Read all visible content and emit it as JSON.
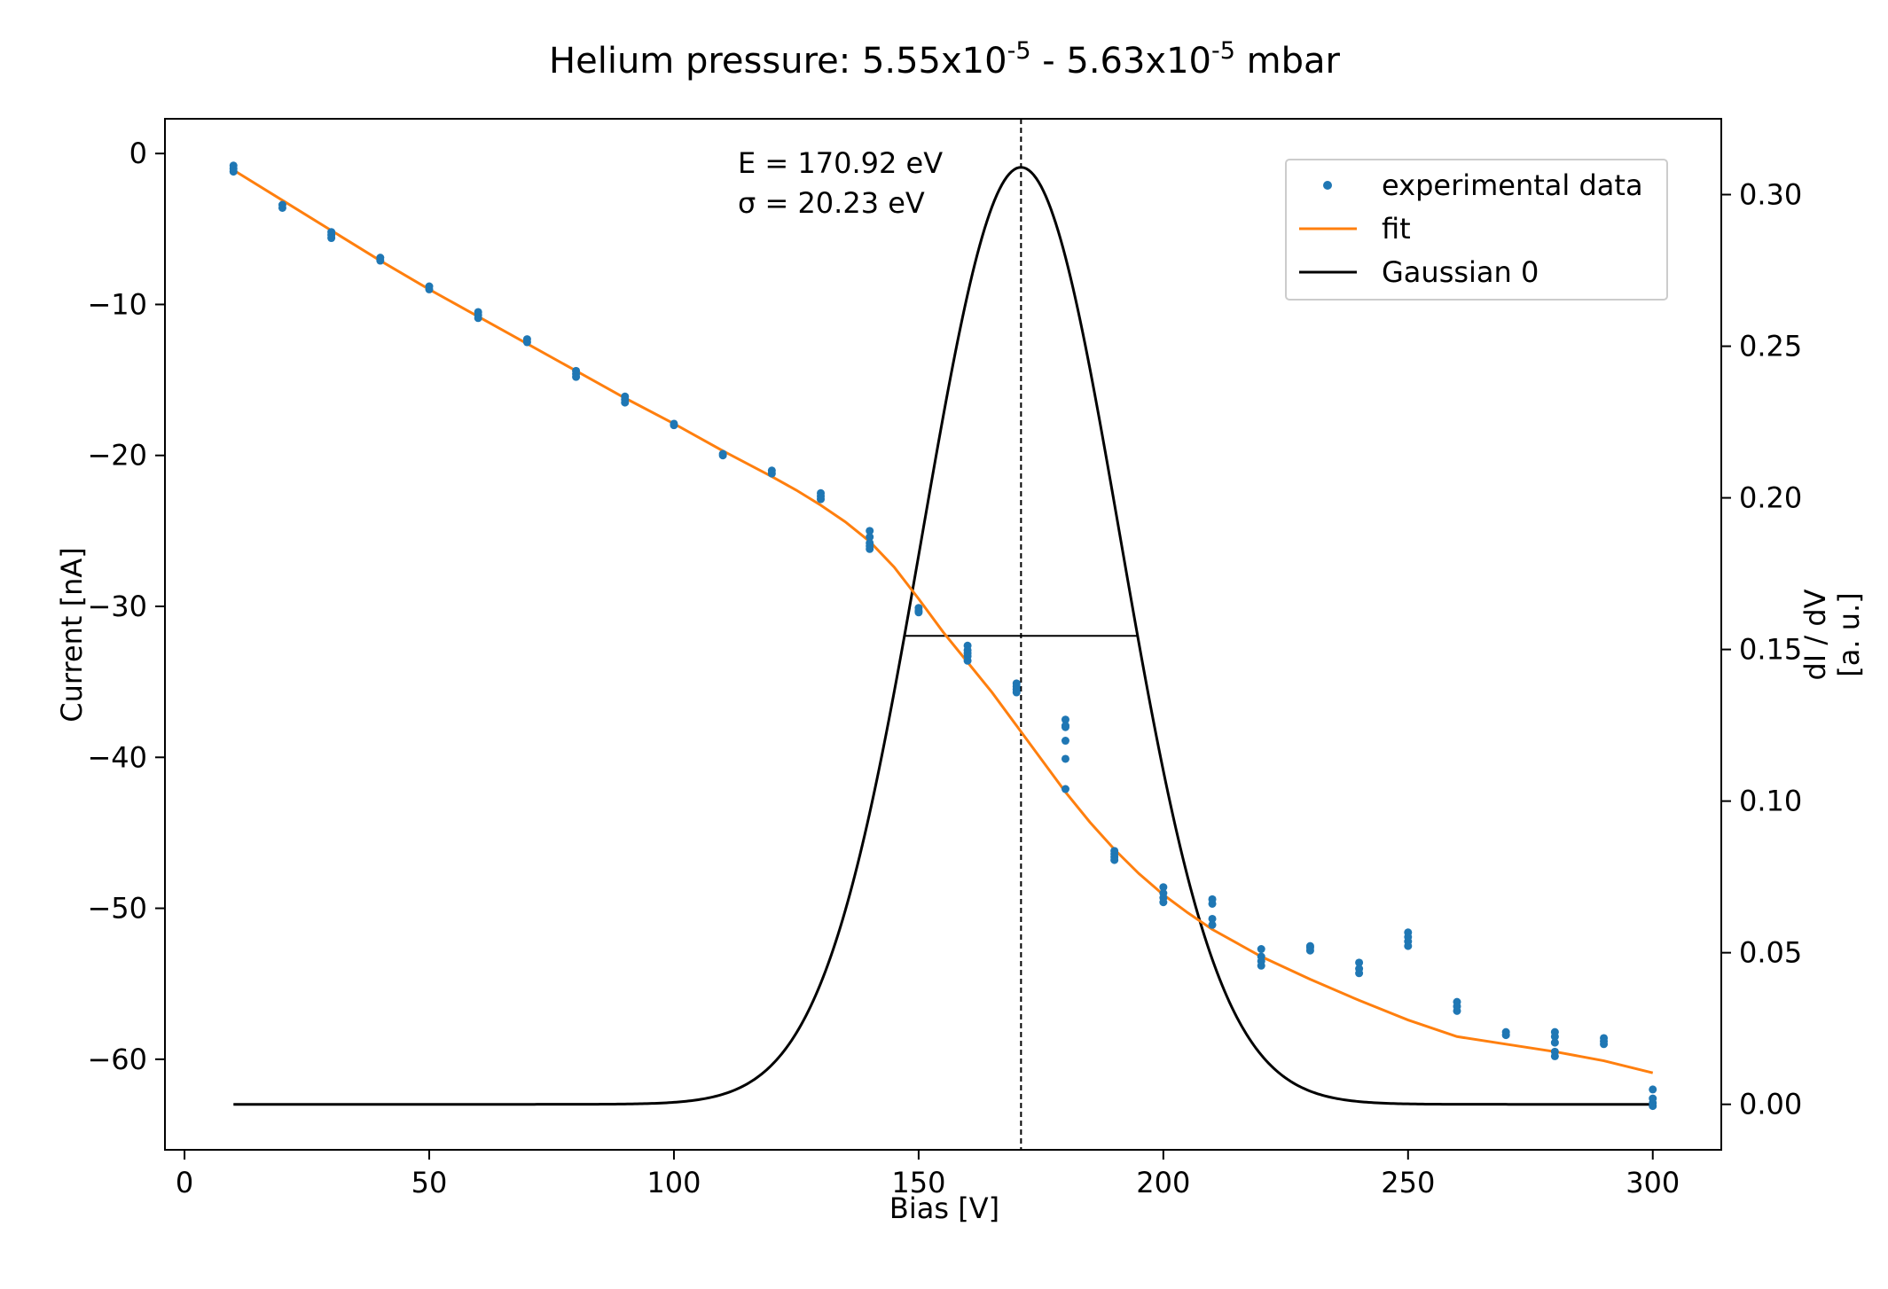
{
  "chart_data": {
    "type": "scatter",
    "title": {
      "prefix": "Helium pressure: 5.55x10",
      "sup1": "-5",
      "middle": " - 5.63x10",
      "sup2": "-5",
      "suffix": " mbar"
    },
    "xlabel": "Bias [V]",
    "ylabel_left": "Current [nA]",
    "ylabel_right_line1": "dI / dV",
    "ylabel_right_line2": "[a. u.]",
    "xlim": [
      -4,
      314
    ],
    "ylim_left": [
      -66.0,
      2.3
    ],
    "ylim_right": [
      -0.015,
      0.325
    ],
    "x_ticks": [
      0,
      50,
      100,
      150,
      200,
      250,
      300
    ],
    "x_tick_labels": [
      "0",
      "50",
      "100",
      "150",
      "200",
      "250",
      "300"
    ],
    "y_left_ticks": [
      0,
      -10,
      -20,
      -30,
      -40,
      -50,
      -60
    ],
    "y_left_tick_labels": [
      "0",
      "−10",
      "−20",
      "−30",
      "−40",
      "−50",
      "−60"
    ],
    "y_right_ticks": [
      0.0,
      0.05,
      0.1,
      0.15,
      0.2,
      0.25,
      0.3
    ],
    "y_right_tick_labels": [
      "0.00",
      "0.05",
      "0.10",
      "0.15",
      "0.20",
      "0.25",
      "0.30"
    ],
    "annotation_energy": "E = 170.92 eV",
    "annotation_sigma": "σ = 20.23 eV",
    "legend": {
      "position": "top-right",
      "entries": [
        "experimental data",
        "fit",
        "Gaussian 0"
      ]
    },
    "colors": {
      "data": "#1f77b4",
      "fit": "#ff7f0e",
      "gaussian": "#000000"
    },
    "series_data": {
      "name": "experimental data",
      "x": [
        10,
        10,
        10,
        20,
        20,
        30,
        30,
        30,
        40,
        40,
        50,
        50,
        60,
        60,
        60,
        70,
        70,
        80,
        80,
        80,
        90,
        90,
        90,
        100,
        100,
        110,
        110,
        120,
        120,
        130,
        130,
        130,
        140,
        140,
        140,
        140,
        140,
        150,
        150,
        150,
        160,
        160,
        160,
        160,
        160,
        170,
        170,
        170,
        170,
        180,
        180,
        180,
        180,
        180,
        180,
        190,
        190,
        190,
        190,
        200,
        200,
        200,
        200,
        210,
        210,
        210,
        210,
        220,
        220,
        220,
        220,
        230,
        230,
        230,
        240,
        240,
        240,
        250,
        250,
        250,
        250,
        260,
        260,
        260,
        270,
        270,
        280,
        280,
        280,
        280,
        280,
        290,
        290,
        290,
        300,
        300,
        300,
        300
      ],
      "y": [
        -0.8,
        -1.0,
        -1.2,
        -3.4,
        -3.6,
        -5.2,
        -5.4,
        -5.6,
        -6.9,
        -7.1,
        -8.8,
        -9.0,
        -10.5,
        -10.7,
        -10.9,
        -12.3,
        -12.5,
        -14.4,
        -14.6,
        -14.8,
        -16.1,
        -16.3,
        -16.5,
        -17.9,
        -18.0,
        -19.9,
        -20.0,
        -21.0,
        -21.2,
        -22.5,
        -22.7,
        -22.9,
        -25.0,
        -25.4,
        -25.8,
        -26.0,
        -26.2,
        -30.1,
        -30.3,
        -30.4,
        -32.6,
        -32.9,
        -33.1,
        -33.3,
        -33.6,
        -35.1,
        -35.3,
        -35.5,
        -35.7,
        -37.5,
        -37.9,
        -38.9,
        -40.1,
        -42.1,
        -38.0,
        -46.2,
        -46.4,
        -46.6,
        -46.8,
        -48.6,
        -49.0,
        -49.3,
        -49.6,
        -49.4,
        -49.7,
        -50.7,
        -51.1,
        -52.7,
        -53.2,
        -53.5,
        -53.8,
        -52.5,
        -52.6,
        -52.8,
        -53.6,
        -54.0,
        -54.3,
        -51.6,
        -51.9,
        -52.2,
        -52.5,
        -56.2,
        -56.5,
        -56.8,
        -58.2,
        -58.4,
        -58.2,
        -58.5,
        -58.9,
        -59.5,
        -59.8,
        -58.6,
        -58.8,
        -59.0,
        -62.0,
        -62.6,
        -62.9,
        -63.1
      ]
    },
    "fit_series": {
      "name": "fit",
      "x": [
        10,
        20,
        30,
        40,
        50,
        60,
        70,
        80,
        90,
        100,
        110,
        120,
        125,
        130,
        135,
        140,
        145,
        150,
        155,
        160,
        165,
        170,
        175,
        180,
        185,
        190,
        195,
        200,
        205,
        210,
        215,
        220,
        230,
        240,
        250,
        260,
        270,
        280,
        290,
        300
      ],
      "y": [
        -1.1,
        -3.1,
        -5.1,
        -7.1,
        -9.0,
        -10.8,
        -12.6,
        -14.4,
        -16.2,
        -17.9,
        -19.7,
        -21.4,
        -22.3,
        -23.3,
        -24.4,
        -25.7,
        -27.4,
        -29.5,
        -31.7,
        -33.7,
        -35.7,
        -37.9,
        -40.1,
        -42.3,
        -44.3,
        -46.1,
        -47.7,
        -49.1,
        -50.3,
        -51.4,
        -52.3,
        -53.2,
        -54.7,
        -56.1,
        -57.4,
        -58.5,
        -59.0,
        -59.5,
        -60.1,
        -60.9
      ]
    },
    "gaussian_series": {
      "name": "Gaussian 0",
      "mu": 170.92,
      "sigma": 20.23,
      "peak": 0.309,
      "x_range": [
        10,
        300
      ]
    },
    "fwhm_segment": {
      "x": [
        147.1,
        194.7
      ],
      "y": 0.1545
    },
    "vertical_marker_x": 170.92
  }
}
